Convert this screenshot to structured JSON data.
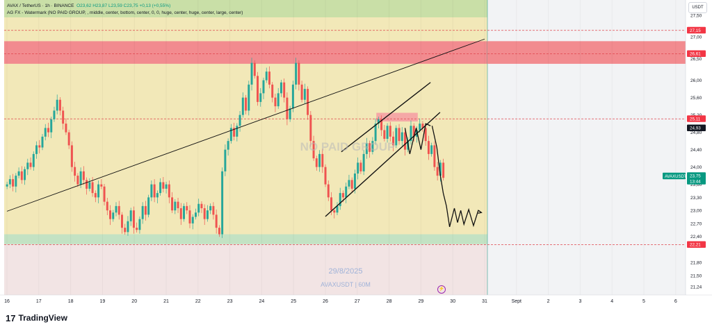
{
  "header": {
    "symbol_line": "AVAX / TetherUS · 1h · BINANCE",
    "ohlc": "O23,62  H23,87  L23,59  C23,75  +0,13 (+0,55%)",
    "indicator_line": "AG FX - Watermark (NO PAID GROUP, , middle, center, bottom, center, 0, 0, huge, center, huge, center, large, center)",
    "currency": "USDT"
  },
  "watermark": {
    "text": "NO PAID GROUP",
    "date": "29/8/2025",
    "symbol": "AVAXUSDT | 60M"
  },
  "footer": {
    "brand": "TradingView",
    "logo_icon": "tradingview-logo-icon"
  },
  "icons": {
    "lightning": "lightning-icon"
  },
  "chart_data": {
    "type": "candlestick",
    "x_tick_labels": [
      "16",
      "17",
      "18",
      "19",
      "20",
      "21",
      "22",
      "23",
      "24",
      "25",
      "26",
      "27",
      "28",
      "29",
      "30",
      "31",
      "Sept",
      "2",
      "3",
      "4",
      "5",
      "6"
    ],
    "y_tick_labels": [
      "27,50",
      "27,00",
      "26,50",
      "26,00",
      "25,60",
      "25,20",
      "24,80",
      "24,40",
      "24,00",
      "23,60",
      "23,30",
      "23,00",
      "22,70",
      "22,40",
      "21,80",
      "21,50",
      "21,24"
    ],
    "ylim": [
      21.05,
      27.85
    ],
    "price_labels": [
      {
        "text": "27,15",
        "value": 27.15,
        "color": "#f23645"
      },
      {
        "text": "26,61",
        "value": 26.61,
        "color": "#f23645"
      },
      {
        "text": "25,11",
        "value": 25.11,
        "color": "#f23645"
      },
      {
        "text": "24,93",
        "value": 24.93,
        "color": "#131722"
      },
      {
        "text": "AVAXUSDT",
        "value": 23.75,
        "color": "#089981"
      },
      {
        "text": "23,75",
        "value": 23.75,
        "color": "#089981"
      },
      {
        "text": "13:44",
        "value": 23.75,
        "color": "#089981"
      },
      {
        "text": "22,21",
        "value": 22.21,
        "color": "#f23645"
      }
    ],
    "zones": [
      {
        "name": "top-green-zone",
        "y1": 27.85,
        "y2": 27.45,
        "x1": "16",
        "x2": "31",
        "color": "#c9dfa7"
      },
      {
        "name": "yellow-range",
        "y1": 27.45,
        "y2": 22.45,
        "x1": "16",
        "x2": "31",
        "color": "#f2e8b8"
      },
      {
        "name": "red-supply-zone",
        "y1": 26.9,
        "y2": 26.38,
        "x1": "16",
        "x2": "end",
        "color": "#f28b8f"
      },
      {
        "name": "red-mini-zone",
        "y1": 25.25,
        "y2": 25.05,
        "x1": 27.6,
        "x2": 28.9,
        "color": "#f5a8a6"
      },
      {
        "name": "bottom-green-zone",
        "y1": 22.45,
        "y2": 22.22,
        "x1": "16",
        "x2": "31",
        "color": "#c3e2c3"
      },
      {
        "name": "bottom-pink-zone",
        "y1": 22.22,
        "y2": 21.05,
        "x1": "16",
        "x2": "31",
        "color": "#f2e4e4"
      }
    ],
    "dashed_levels": [
      27.15,
      26.61,
      25.11,
      22.21
    ],
    "trendlines": [
      {
        "from": [
          16.0,
          22.98
        ],
        "to": [
          31.0,
          26.95
        ]
      },
      {
        "from": [
          26.5,
          24.35
        ],
        "to": [
          29.3,
          25.95
        ]
      },
      {
        "from": [
          26.0,
          22.86
        ],
        "to": [
          29.6,
          25.26
        ]
      }
    ],
    "projection_path": [
      [
        29.35,
        24.95
      ],
      [
        29.5,
        24.45
      ],
      [
        29.6,
        23.85
      ],
      [
        29.7,
        23.4
      ],
      [
        29.8,
        23.1
      ],
      [
        29.9,
        22.62
      ],
      [
        30.05,
        23.05
      ],
      [
        30.15,
        22.72
      ],
      [
        30.25,
        23.0
      ],
      [
        30.35,
        22.68
      ],
      [
        30.5,
        23.02
      ],
      [
        30.65,
        22.65
      ],
      [
        30.8,
        23.0
      ],
      [
        30.9,
        22.95
      ]
    ],
    "projection_start": [
      [
        28.5,
        24.9
      ],
      [
        28.65,
        24.3
      ],
      [
        28.85,
        24.9
      ],
      [
        29.0,
        24.4
      ],
      [
        29.15,
        25.0
      ],
      [
        29.3,
        24.95
      ]
    ],
    "closes": [
      23.6,
      23.72,
      23.55,
      23.8,
      23.9,
      23.7,
      23.95,
      24.1,
      24.0,
      24.3,
      24.5,
      24.45,
      24.7,
      24.9,
      24.8,
      25.1,
      25.3,
      25.55,
      25.3,
      25.0,
      24.8,
      24.5,
      24.0,
      23.8,
      23.6,
      23.9,
      23.7,
      23.5,
      23.65,
      23.4,
      23.3,
      23.6,
      23.55,
      23.2,
      23.0,
      22.8,
      22.95,
      23.1,
      22.9,
      22.6,
      22.5,
      22.75,
      23.0,
      22.6,
      22.55,
      22.8,
      23.1,
      22.9,
      23.3,
      23.6,
      23.3,
      23.4,
      23.65,
      23.5,
      23.6,
      23.3,
      23.0,
      23.2,
      23.05,
      22.8,
      23.1,
      23.0,
      22.7,
      22.85,
      22.95,
      23.15,
      23.05,
      22.8,
      23.0,
      23.1,
      22.9,
      22.6,
      22.45,
      23.9,
      24.4,
      24.6,
      24.9,
      24.7,
      24.95,
      25.2,
      25.6,
      25.3,
      25.9,
      26.4,
      26.1,
      25.5,
      25.7,
      26.0,
      26.2,
      25.9,
      25.6,
      25.4,
      25.7,
      25.95,
      25.6,
      25.1,
      25.35,
      25.9,
      26.4,
      25.9,
      25.55,
      25.8,
      25.2,
      24.6,
      24.2,
      24.0,
      24.3,
      24.0,
      23.6,
      23.3,
      23.0,
      22.95,
      23.1,
      23.4,
      23.3,
      23.55,
      23.7,
      23.5,
      23.85,
      24.1,
      23.9,
      24.3,
      24.55,
      24.35,
      24.6,
      25.0,
      25.1,
      24.85,
      24.65,
      24.95,
      24.7,
      24.5,
      24.9,
      24.6,
      24.8,
      24.4,
      24.6,
      24.95,
      24.7,
      24.85,
      25.0,
      24.9,
      24.6,
      24.3,
      24.5,
      24.0,
      23.8,
      24.1,
      23.75
    ]
  }
}
